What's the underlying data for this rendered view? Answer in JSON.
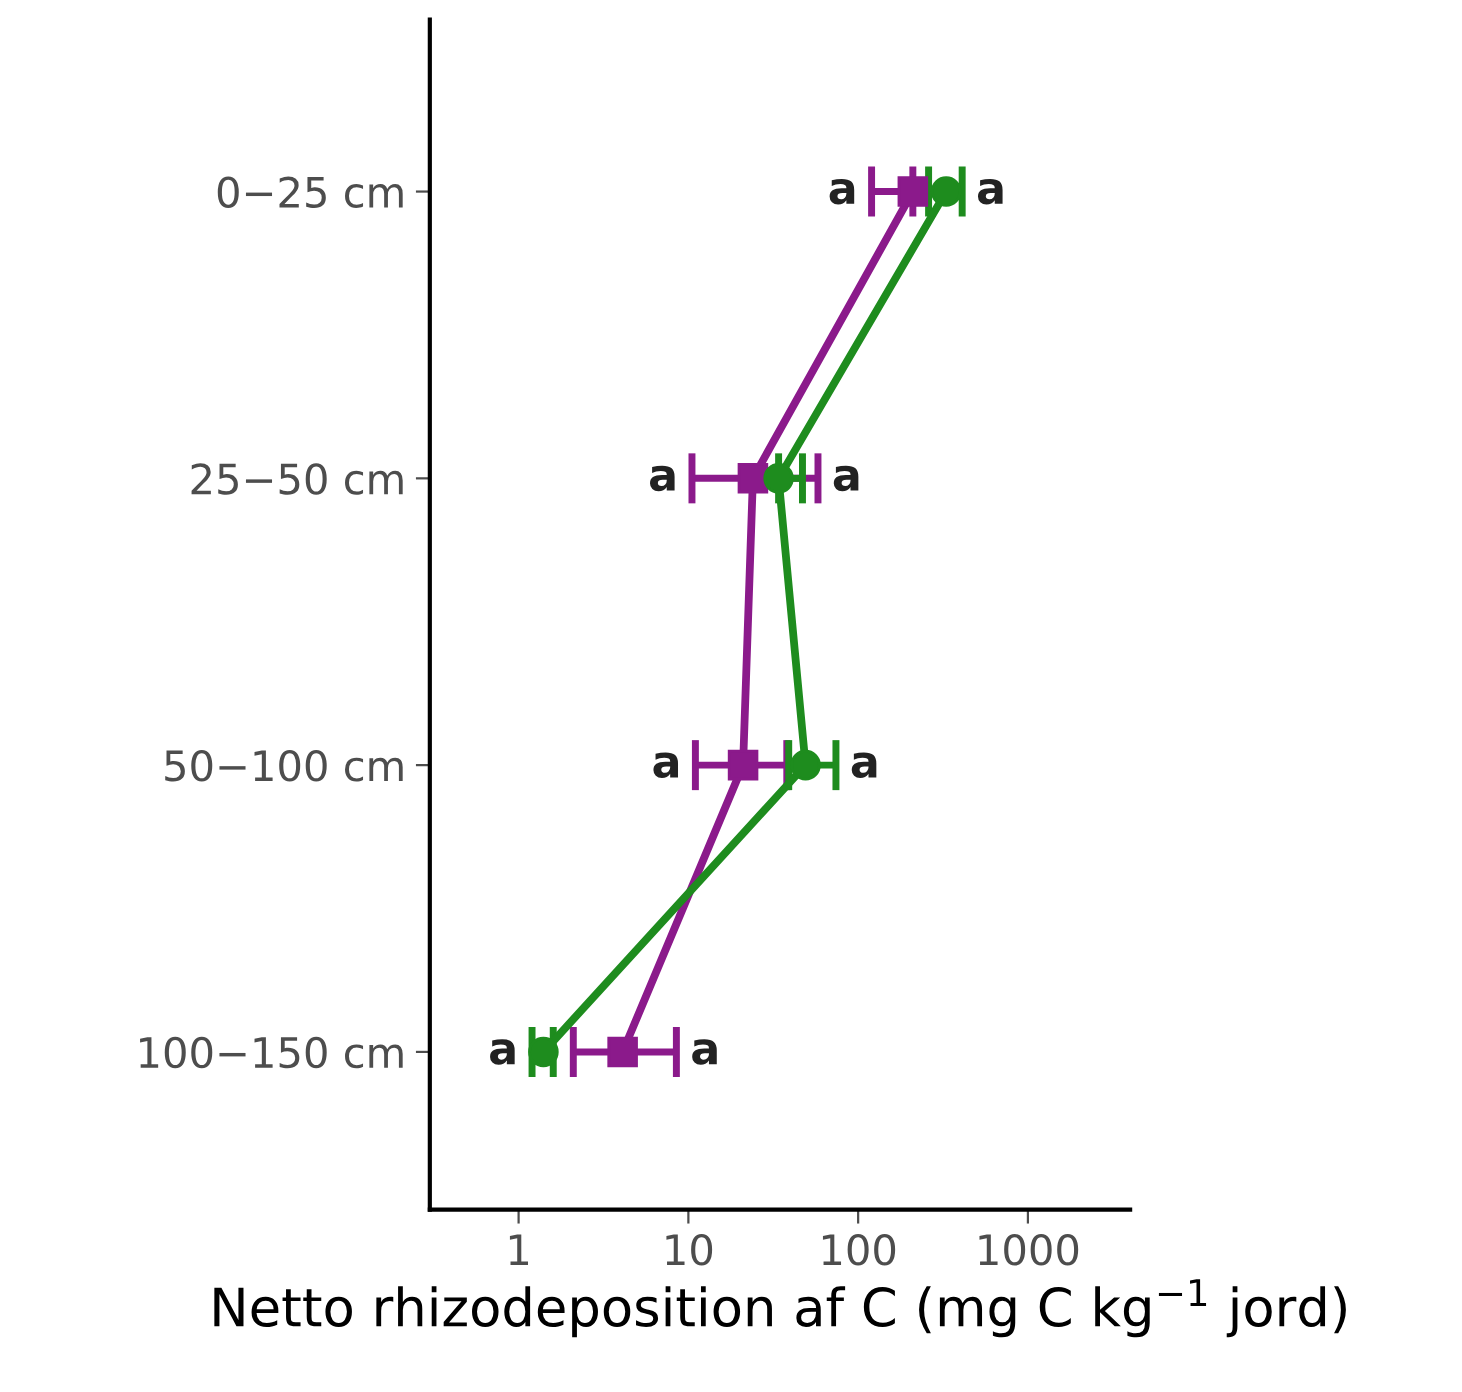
{
  "chart_data": {
    "type": "line",
    "orientation": "horizontal",
    "log": "x",
    "xlabel": "Netto rhizodeposition af C (mg C kg$^{−1}$ jord)",
    "categories": [
      "0−25 cm",
      "25−50 cm",
      "50−100 cm",
      "100−150 cm"
    ],
    "xlim": [
      0.3,
      4000
    ],
    "xticks": [
      1,
      10,
      100,
      1000
    ],
    "grid": false,
    "legend": false,
    "series": [
      {
        "color": "#8b1a8b",
        "marker": "square",
        "values": [
          210,
          24,
          21,
          4.1
        ],
        "errors": [
          [
            120,
            210
          ],
          [
            10.5,
            58
          ],
          [
            11,
            38
          ],
          [
            2.1,
            8.5
          ]
        ]
      },
      {
        "color": "#1e8c1e",
        "marker": "circle",
        "values": [
          330,
          34,
          49,
          1.4
        ],
        "errors": [
          [
            260,
            410
          ],
          [
            34,
            47
          ],
          [
            39,
            74
          ],
          [
            1.2,
            1.6
          ]
        ]
      }
    ],
    "annotations": [
      "a",
      "a",
      "a",
      "a",
      "a",
      "a",
      "a",
      "a"
    ]
  }
}
